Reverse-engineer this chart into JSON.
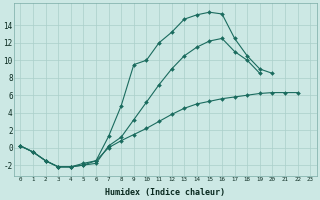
{
  "xlabel": "Humidex (Indice chaleur)",
  "bg_color": "#cce8e4",
  "grid_color": "#aacfca",
  "line_color": "#1a6b5e",
  "line1_y": [
    0.2,
    -0.5,
    -1.5,
    -2.2,
    -2.2,
    -1.8,
    -1.5,
    1.3,
    4.8,
    9.5,
    10.0,
    12.0,
    13.2,
    14.7,
    15.2,
    15.5,
    15.3,
    12.5,
    10.5,
    9.0,
    8.5,
    null,
    null,
    null
  ],
  "line2_y": [
    0.2,
    -0.5,
    -1.5,
    -2.2,
    -2.2,
    -2.0,
    -1.8,
    0.2,
    1.2,
    3.2,
    5.2,
    7.2,
    9.0,
    10.5,
    11.5,
    12.2,
    12.5,
    11.0,
    10.0,
    8.5,
    null,
    null,
    null,
    null
  ],
  "line3_y": [
    0.2,
    -0.5,
    -1.5,
    -2.2,
    -2.2,
    -2.0,
    -1.5,
    0.0,
    0.8,
    1.5,
    2.2,
    3.0,
    3.8,
    4.5,
    5.0,
    5.3,
    5.6,
    5.8,
    6.0,
    6.2,
    6.3,
    6.3,
    6.3,
    null
  ],
  "ylim": [
    -3.2,
    16.5
  ],
  "xlim": [
    -0.5,
    23.5
  ],
  "yticks": [
    -2,
    0,
    2,
    4,
    6,
    8,
    10,
    12,
    14
  ],
  "xticks": [
    0,
    1,
    2,
    3,
    4,
    5,
    6,
    7,
    8,
    9,
    10,
    11,
    12,
    13,
    14,
    15,
    16,
    17,
    18,
    19,
    20,
    21,
    22,
    23
  ]
}
